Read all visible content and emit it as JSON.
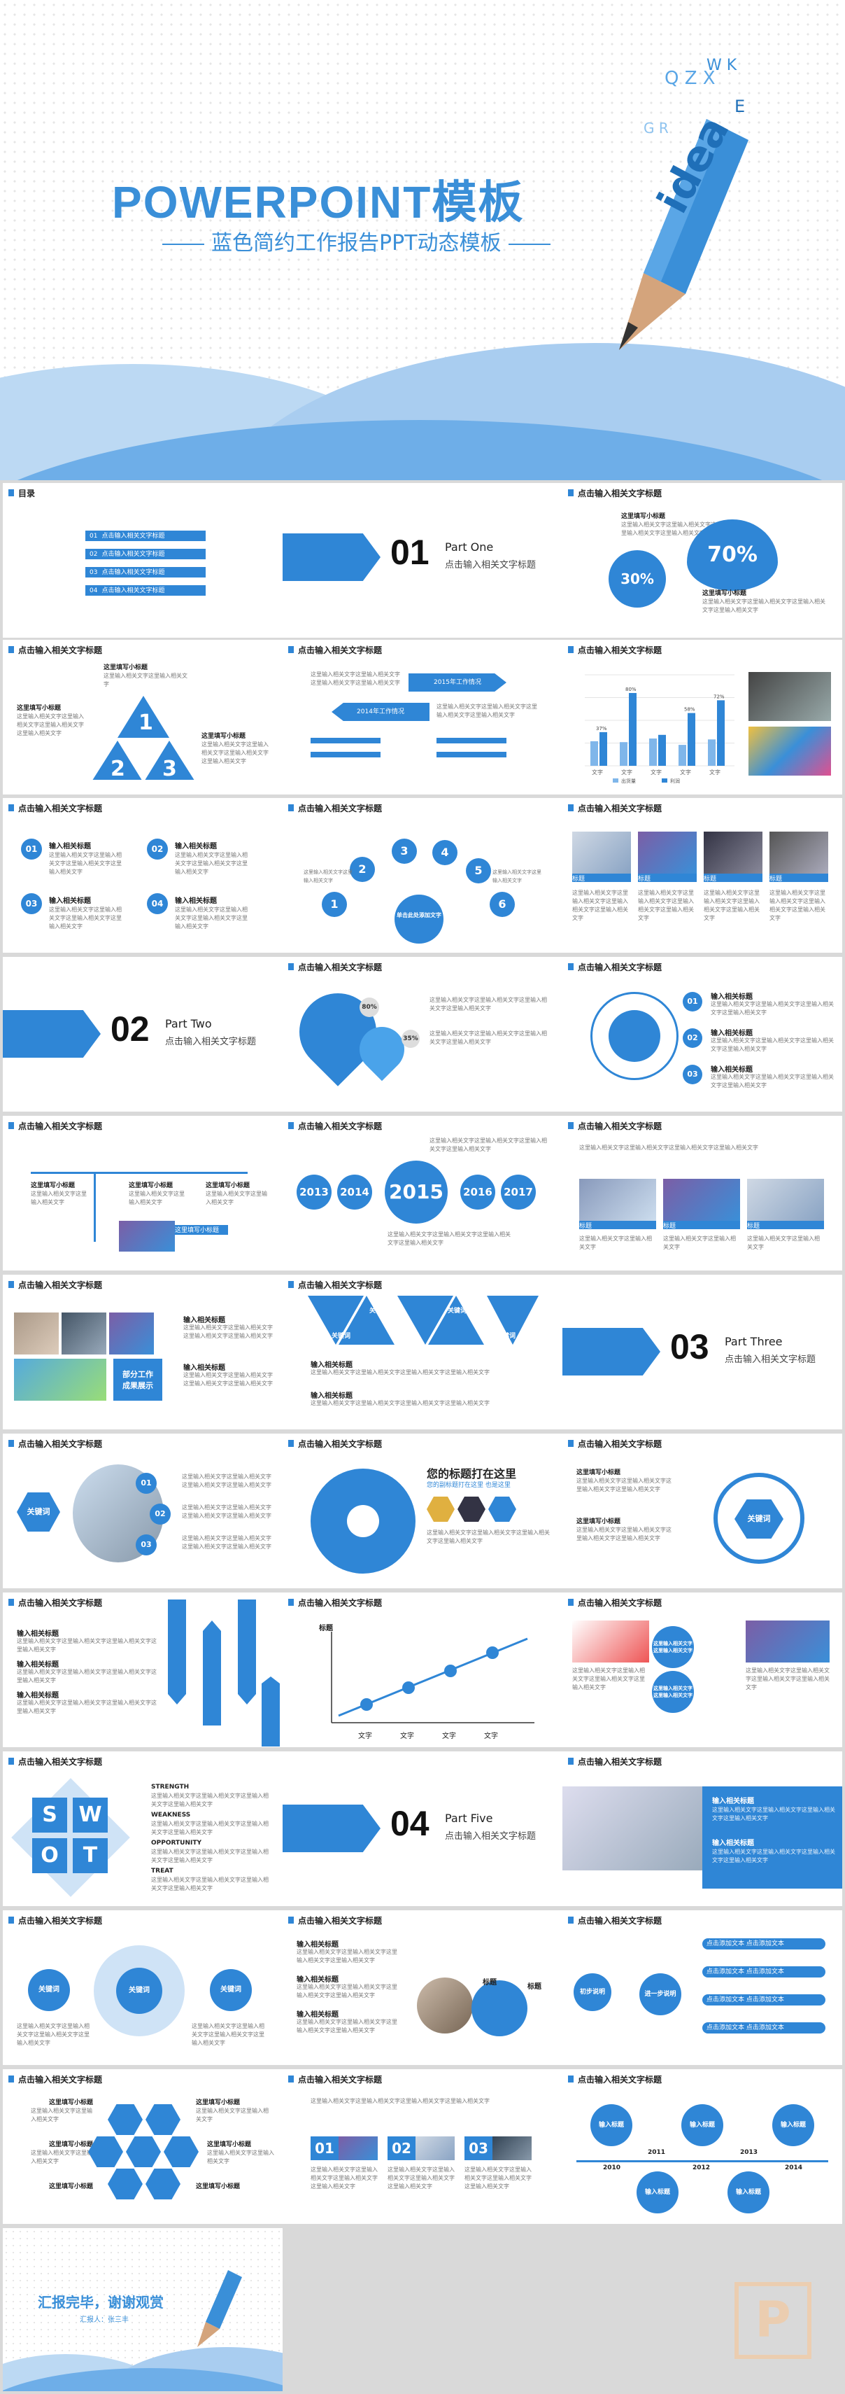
{
  "cover": {
    "title": "POWERPOINT模板",
    "subtitle": "蓝色简约工作报告PPT动态模板",
    "pencil_letters": "idea"
  },
  "common": {
    "slide_title": "点击输入相关文字标题",
    "body_text": "这里输入相关文字这里输入相关文字",
    "body_long": "这里输入相关文字这里输入相关文字这里输入相关文字这里输入相关文字",
    "sub_heading": "这里填写小标题",
    "input_title": "输入相关标题",
    "keyword": "关键词",
    "label": "标题",
    "text": "文字"
  },
  "toc": {
    "title": "目录",
    "items": [
      {
        "num": "01",
        "label": "点击输入相关文字标题"
      },
      {
        "num": "02",
        "label": "点击输入相关文字标题"
      },
      {
        "num": "03",
        "label": "点击输入相关文字标题"
      },
      {
        "num": "04",
        "label": "点击输入相关文字标题"
      }
    ]
  },
  "parts": [
    {
      "num": "01",
      "name": "Part One",
      "sub": "点击输入相关文字标题"
    },
    {
      "num": "02",
      "name": "Part Two",
      "sub": "点击输入相关文字标题"
    },
    {
      "num": "03",
      "name": "Part Three",
      "sub": "点击输入相关文字标题"
    },
    {
      "num": "04",
      "name": "Part Five",
      "sub": "点击输入相关文字标题"
    }
  ],
  "percent": {
    "big": "70%",
    "small": "30%"
  },
  "triangle": {
    "n1": "1",
    "n2": "2",
    "n3": "3"
  },
  "plan": {
    "s1": "2014年工作情况",
    "s2": "2015年工作情况"
  },
  "bar_chart": {
    "chart_data": {
      "type": "bar",
      "categories": [
        "文字",
        "文字",
        "文字",
        "文字",
        "文字"
      ],
      "series": [
        {
          "name": "出货量",
          "values": [
            27,
            26,
            30,
            23,
            29
          ]
        },
        {
          "name": "利润",
          "values": [
            37,
            80,
            34,
            58,
            72
          ]
        }
      ],
      "labels": [
        "37%",
        "80%",
        "58%",
        "72%"
      ],
      "ylim": [
        0,
        100
      ]
    }
  },
  "bubbles": {
    "nums": [
      "1",
      "2",
      "3",
      "4",
      "5",
      "6"
    ],
    "center": "单击此处添加文字"
  },
  "heart": {
    "p1": "80%",
    "p2": "35%"
  },
  "years": [
    "2013",
    "2014",
    "2015",
    "2016",
    "2017"
  ],
  "side": {
    "t1": "部分工作",
    "t2": "成果展示"
  },
  "headline": {
    "main": "您的标题打在这里",
    "sub": "您的副标题打在这里 也是这里"
  },
  "axis": {
    "y": "标题",
    "x": [
      "文字",
      "文字",
      "文字",
      "文字"
    ]
  },
  "swot": {
    "letters": [
      "S",
      "W",
      "O",
      "T"
    ],
    "words": [
      "STRENGTH",
      "WEAKNESS",
      "OPPORTUNITY",
      "TREAT"
    ]
  },
  "process": {
    "start": "初步说明",
    "mid": "进一步说明",
    "items": [
      "点击添加文本 点击添加文本",
      "点击添加文本 点击添加文本",
      "点击添加文本 点击添加文本",
      "点击添加文本 点击添加文本"
    ]
  },
  "timeline": [
    "2010",
    "2011",
    "2012",
    "2013",
    "2014"
  ],
  "timeline_label": "输入标题",
  "ending": {
    "title": "汇报完毕，谢谢观赏",
    "sub": "汇报人：张三丰"
  }
}
